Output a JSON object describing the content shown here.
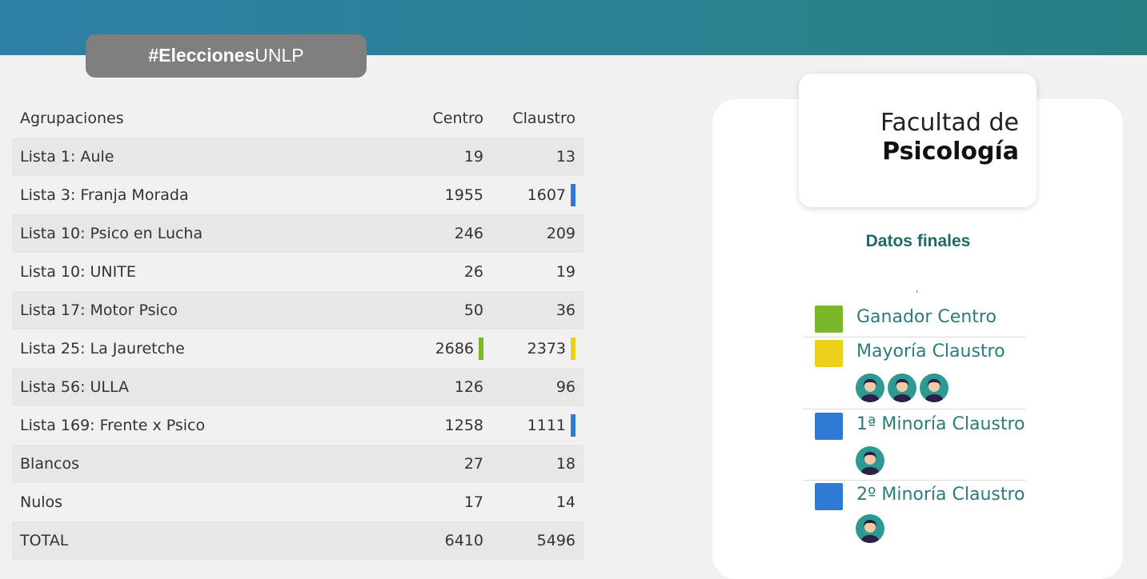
{
  "header": {
    "hashtag_bold": "#Elecciones",
    "hashtag_light": "UNLP"
  },
  "table": {
    "headers": [
      "Agrupaciones",
      "Centro",
      "Claustro"
    ],
    "rows": [
      {
        "name": "Lista 1: Aule",
        "centro": "19",
        "claustro": "13"
      },
      {
        "name": "Lista 3: Franja Morada",
        "centro": "1955",
        "claustro": "1607"
      },
      {
        "name": "Lista 10: Psico en Lucha",
        "centro": "246",
        "claustro": "209"
      },
      {
        "name": "Lista 10: UNITE",
        "centro": "26",
        "claustro": "19"
      },
      {
        "name": "Lista 17: Motor Psico",
        "centro": "50",
        "claustro": "36"
      },
      {
        "name": "Lista 25: La Jauretche",
        "centro": "2686",
        "claustro": "2373"
      },
      {
        "name": "Lista 56: ULLA",
        "centro": "126",
        "claustro": "96"
      },
      {
        "name": "Lista 169: Frente x Psico",
        "centro": "1258",
        "claustro": "1111"
      },
      {
        "name": "Blancos",
        "centro": "27",
        "claustro": "18"
      },
      {
        "name": "Nulos",
        "centro": "17",
        "claustro": "14"
      },
      {
        "name": "TOTAL",
        "centro": "6410",
        "claustro": "5496"
      }
    ]
  },
  "faculty": {
    "line1": "Facultad de",
    "line2": "Psicología"
  },
  "results_panel": {
    "title": "Datos finales",
    "comma": ",",
    "legend": [
      {
        "label": "Ganador Centro",
        "color": "#78b829",
        "seats": 0
      },
      {
        "label": "Mayoría Claustro",
        "color": "#ecd11b",
        "seats": 3
      },
      {
        "label": "1ª Minoría Claustro",
        "color": "#2f7ad4",
        "seats": 1
      },
      {
        "label": "2º Minoría Claustro",
        "color": "#2f7ad4",
        "seats": 1
      }
    ]
  },
  "colors": {
    "winner": "#78b829",
    "majority": "#ecd11b",
    "minority": "#2f7ad4",
    "accent_teal": "#1f6a68"
  }
}
